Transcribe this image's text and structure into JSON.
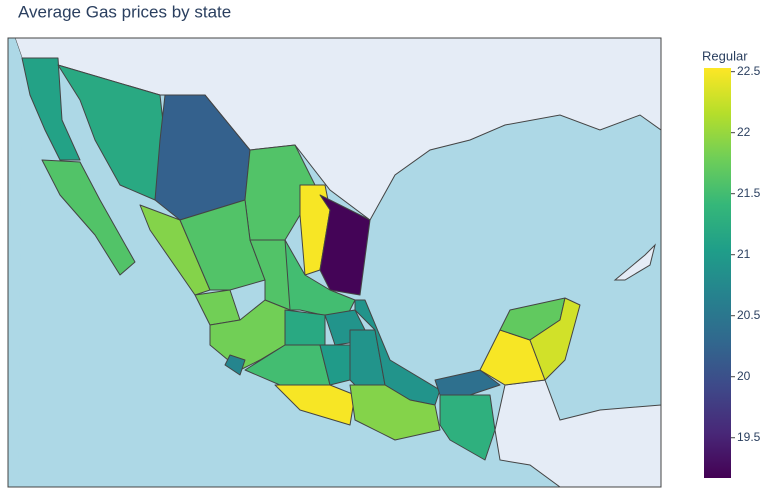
{
  "chart_data": {
    "type": "choropleth",
    "title": "Average Gas prices by state",
    "colorbar_title": "Regular",
    "colorscale": "Viridis",
    "values": [
      21.1,
      21.6,
      21.2,
      20.2,
      21.6,
      22.5,
      19.2,
      21.9,
      21.6,
      21.6,
      21.5,
      21.8,
      21.8,
      20.7,
      21.5,
      21.2,
      20.9,
      22.5,
      21.0,
      20.9,
      20.9,
      21.9,
      21.3,
      20.4,
      22.5,
      21.7,
      22.3
    ],
    "zlim": [
      19.17,
      22.53
    ],
    "zticks": [
      19.5,
      20,
      20.5,
      21,
      21.5,
      22,
      22.5
    ]
  }
}
